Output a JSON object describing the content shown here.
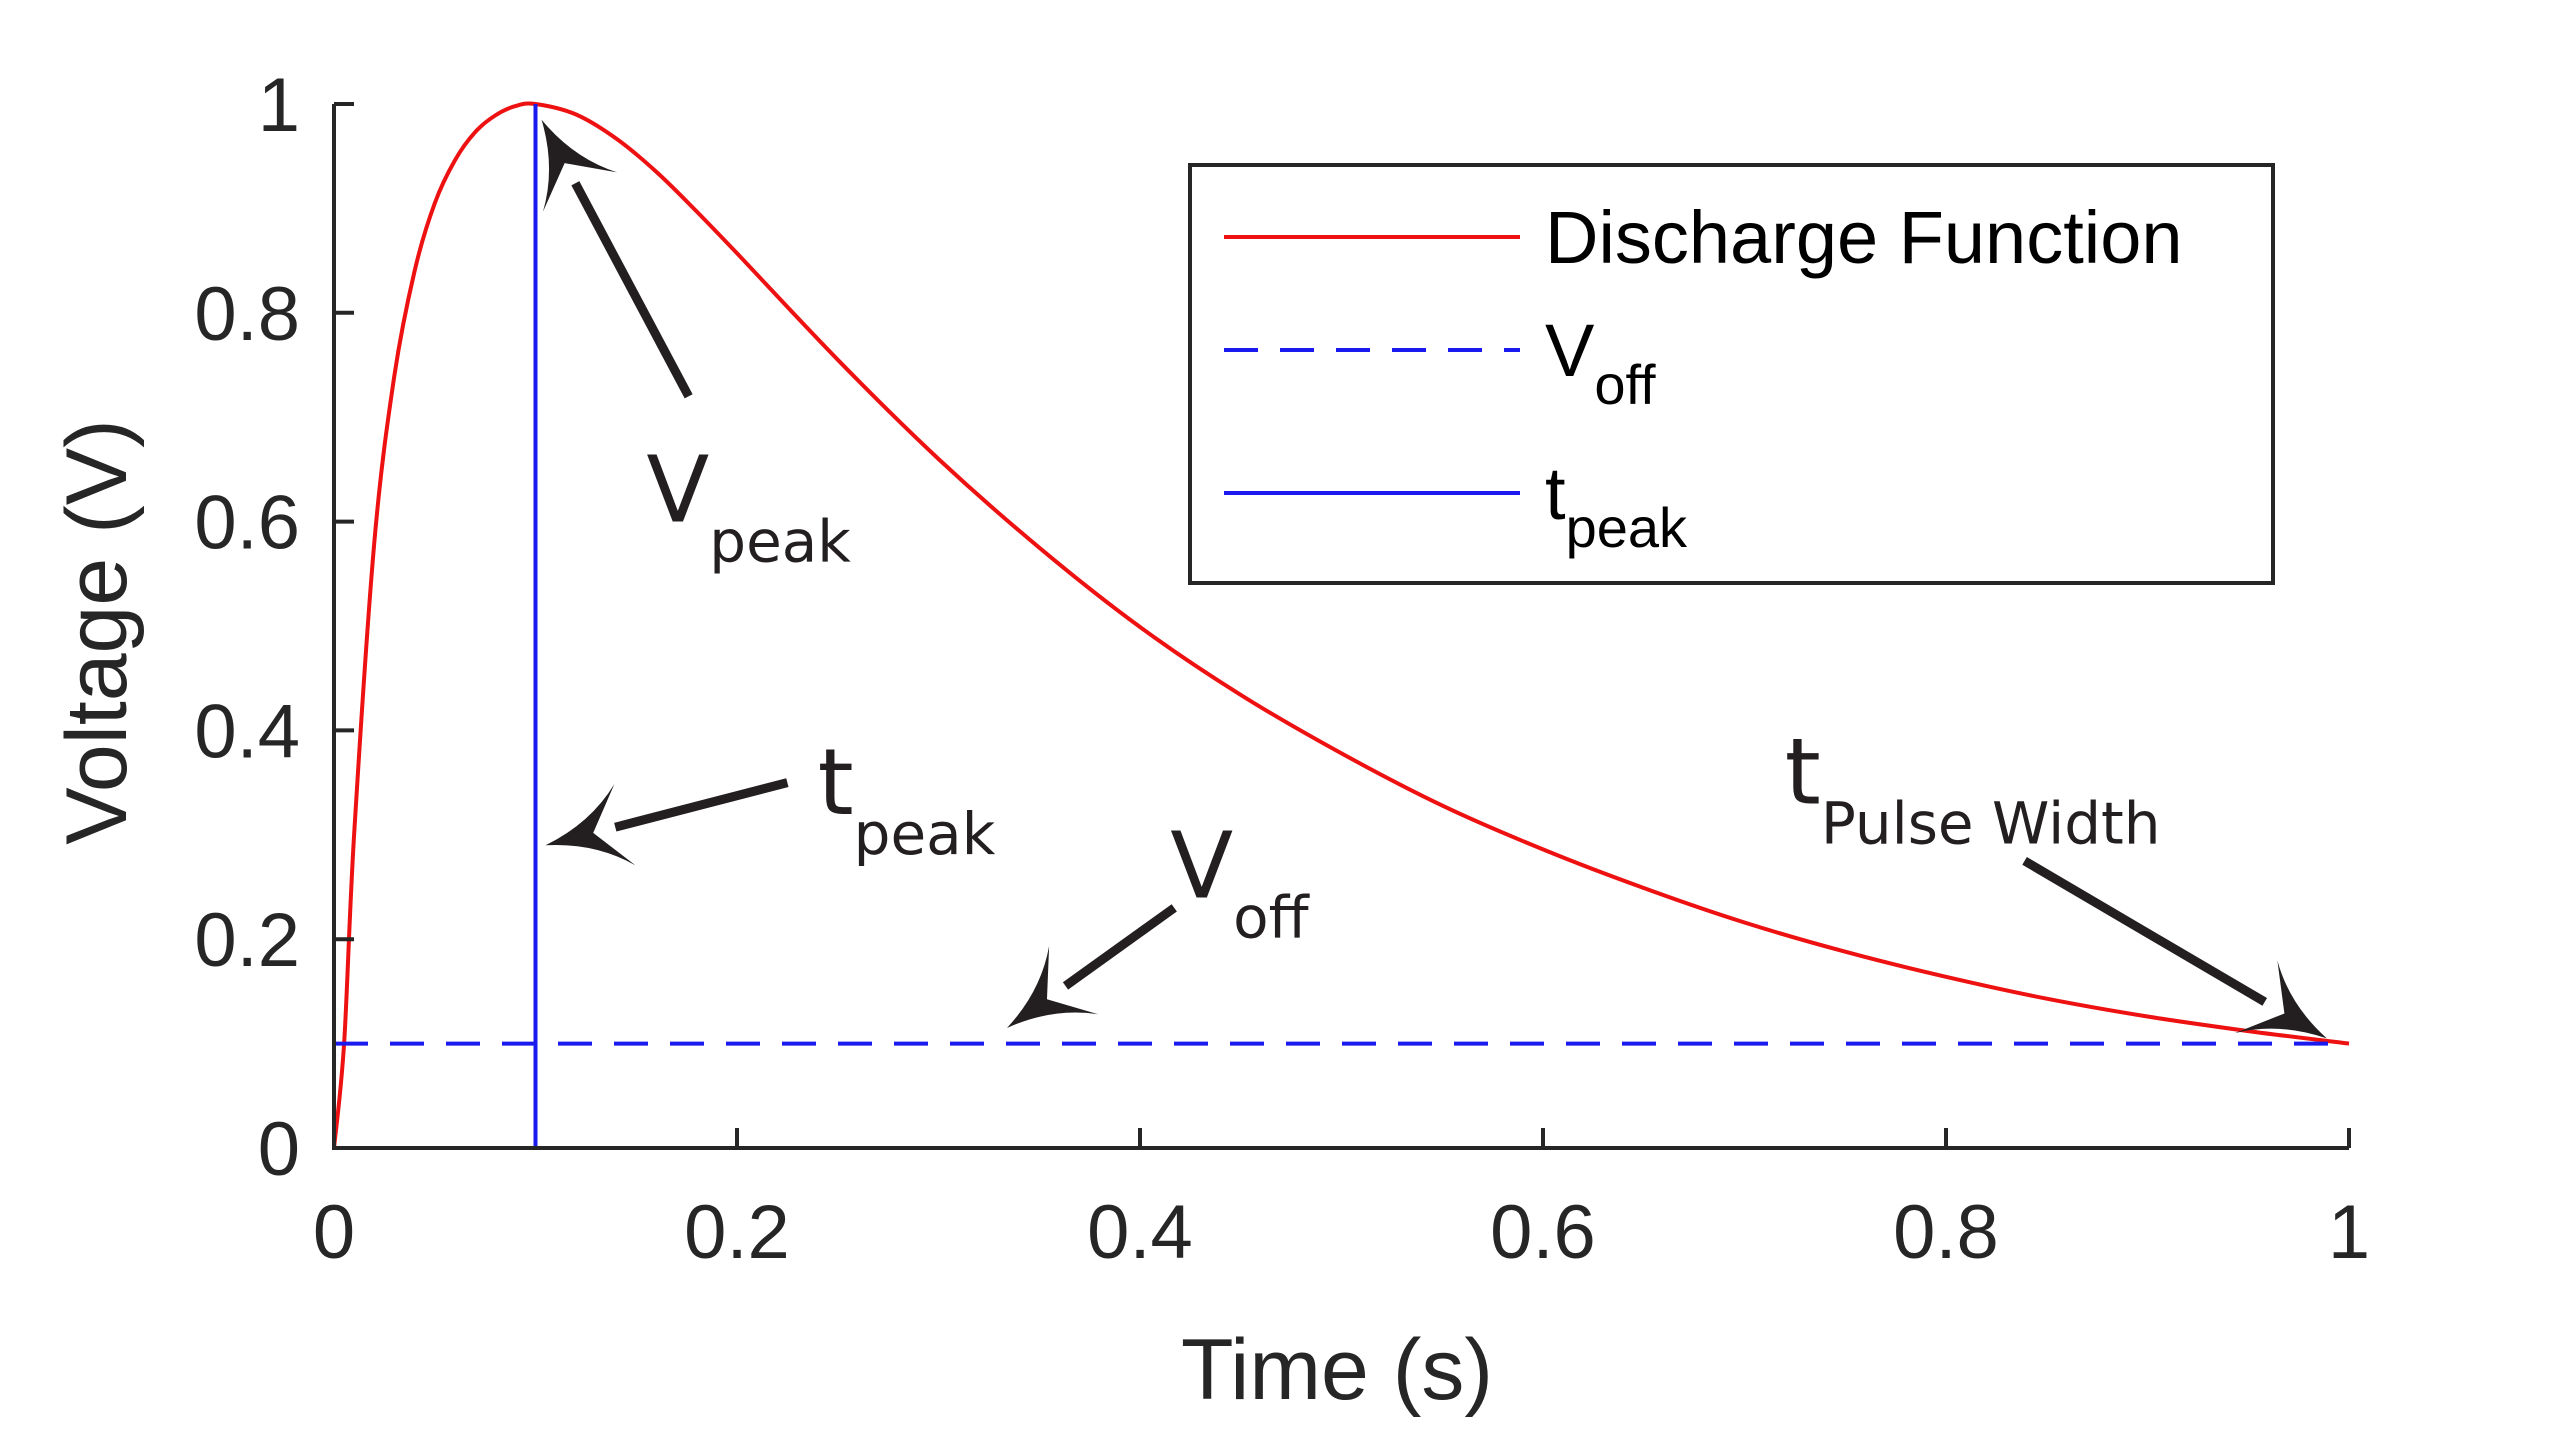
{
  "chart_data": {
    "type": "line",
    "xlabel": "Time (s)",
    "ylabel": "Voltage (V)",
    "xlim": [
      0,
      1
    ],
    "ylim": [
      0,
      1
    ],
    "xticks": [
      "0",
      "0.2",
      "0.4",
      "0.6",
      "0.8",
      "1"
    ],
    "yticks": [
      "0",
      "0.2",
      "0.4",
      "0.6",
      "0.8",
      "1"
    ],
    "grid": false,
    "legend_position": "top-right",
    "series": [
      {
        "name": "Discharge Function",
        "style": "solid",
        "color": "#ee1111",
        "x": [
          0,
          0.005,
          0.01,
          0.02,
          0.03,
          0.04,
          0.05,
          0.06,
          0.07,
          0.08,
          0.09,
          0.1,
          0.12,
          0.14,
          0.16,
          0.18,
          0.2,
          0.25,
          0.3,
          0.35,
          0.4,
          0.45,
          0.5,
          0.55,
          0.6,
          0.65,
          0.7,
          0.75,
          0.8,
          0.85,
          0.9,
          0.95,
          1.0
        ],
        "y": [
          0,
          0.1,
          0.3,
          0.58,
          0.74,
          0.84,
          0.905,
          0.946,
          0.973,
          0.989,
          0.998,
          1.0,
          0.99,
          0.967,
          0.935,
          0.897,
          0.857,
          0.755,
          0.66,
          0.575,
          0.499,
          0.434,
          0.378,
          0.328,
          0.286,
          0.249,
          0.216,
          0.188,
          0.164,
          0.143,
          0.126,
          0.112,
          0.1
        ]
      },
      {
        "name": "V",
        "name_sub": "off",
        "style": "dashed",
        "color": "#1a1aee",
        "x": [
          0,
          1
        ],
        "y": [
          0.1,
          0.1
        ]
      },
      {
        "name": "t",
        "name_sub": "peak",
        "style": "solid",
        "color": "#1a1aee",
        "x": [
          0.1,
          0.1
        ],
        "y": [
          0,
          1
        ]
      }
    ],
    "annotations": [
      {
        "main": "V",
        "sub": "peak",
        "text_at": [
          0.155,
          0.6
        ],
        "arrow_from": [
          0.176,
          0.72
        ],
        "arrow_to": [
          0.103,
          0.985
        ]
      },
      {
        "main": "t",
        "sub": "peak",
        "text_at": [
          0.24,
          0.32
        ],
        "arrow_from": [
          0.225,
          0.35
        ],
        "arrow_to": [
          0.105,
          0.29
        ]
      },
      {
        "main": "V",
        "sub": "off",
        "text_at": [
          0.415,
          0.24
        ],
        "arrow_from": [
          0.417,
          0.23
        ],
        "arrow_to": [
          0.334,
          0.115
        ]
      },
      {
        "main": "t",
        "sub": "Pulse Width",
        "text_at": [
          0.72,
          0.33
        ],
        "arrow_from": [
          0.839,
          0.275
        ],
        "arrow_to": [
          0.989,
          0.105
        ]
      }
    ]
  }
}
